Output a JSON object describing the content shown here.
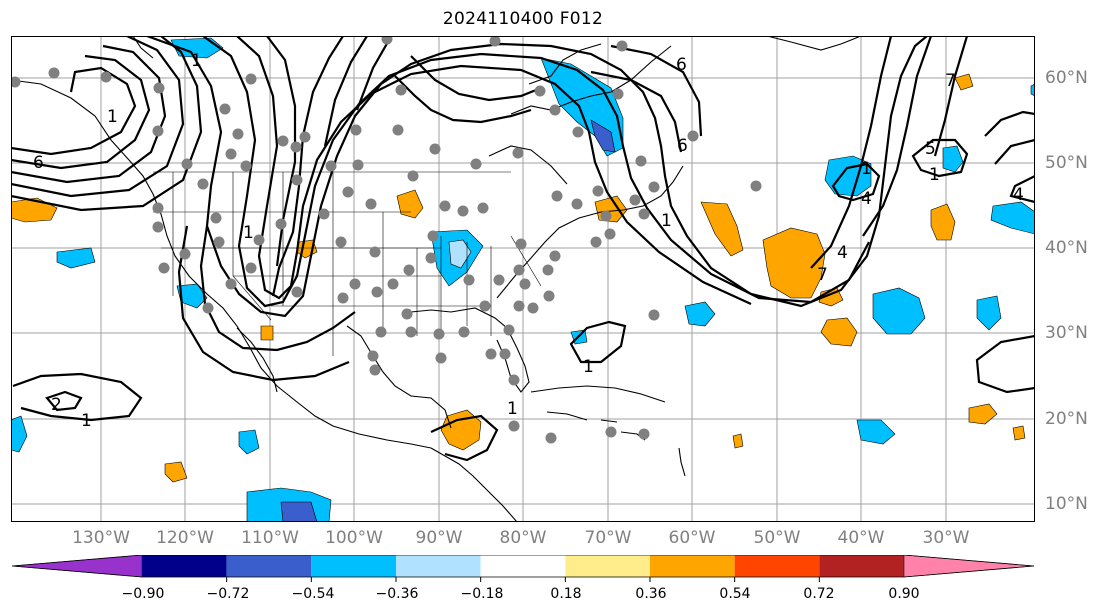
{
  "title": "2024110400 F012",
  "longitude_labels": [
    "130°W",
    "120°W",
    "110°W",
    "100°W",
    "90°W",
    "80°W",
    "70°W",
    "60°W",
    "50°W",
    "40°W",
    "30°W"
  ],
  "latitude_labels": [
    "60°N",
    "50°N",
    "40°N",
    "30°N",
    "20°N",
    "10°N"
  ],
  "colorbar": {
    "tick_labels": [
      "−0.90",
      "−0.72",
      "−0.54",
      "−0.36",
      "−0.18",
      "0.18",
      "0.36",
      "0.54",
      "0.72",
      "0.90"
    ],
    "colors": [
      "#9932cc",
      "#00008b",
      "#3a5fcd",
      "#00bfff",
      "#b0e2ff",
      "#ffffff",
      "#ffec8b",
      "#ffa500",
      "#ff4500",
      "#b22222",
      "#ff82ab"
    ]
  },
  "contour_labels": [
    "6",
    "6",
    "6",
    "7",
    "7",
    "5",
    "4",
    "4",
    "4",
    "1",
    "1",
    "1",
    "1",
    "2",
    "1",
    "1",
    "1",
    "1",
    "1"
  ],
  "colors": {
    "grid": "#a0a0a0",
    "land_lines": "#000000",
    "station_dots": "#808080",
    "label_gray": "#808080"
  }
}
